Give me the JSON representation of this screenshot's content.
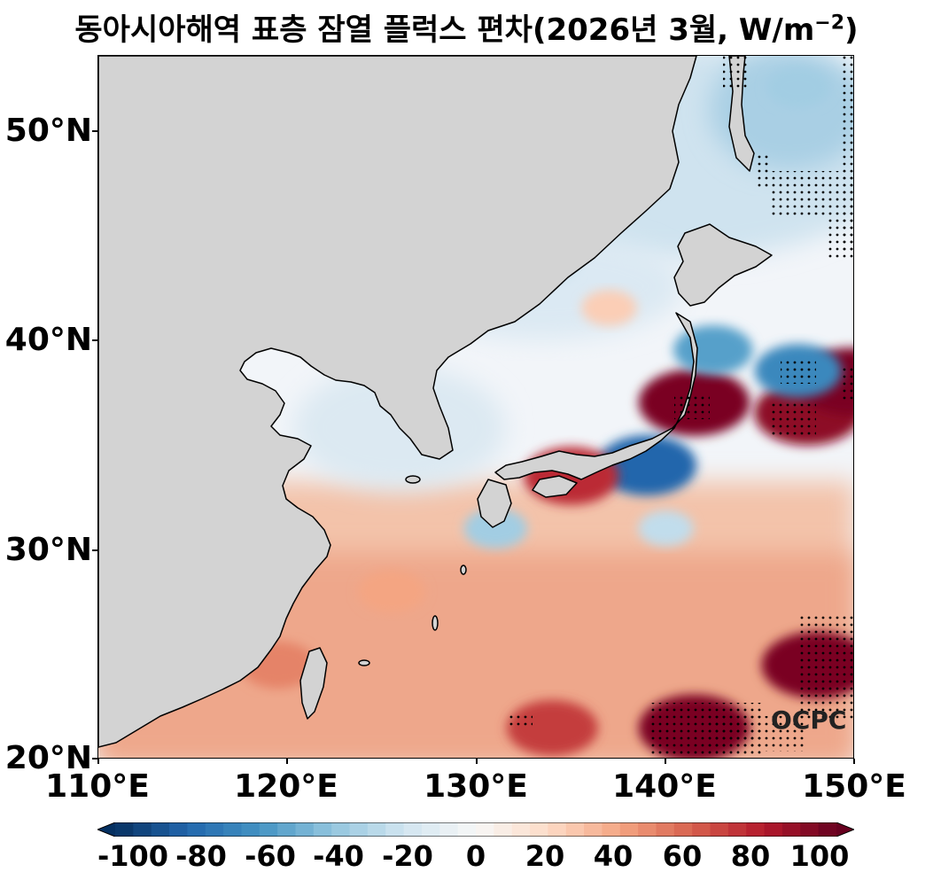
{
  "title": {
    "main": "동아시아해역 표층 잠열 플럭스 편차(2026년 3월, W/m",
    "exponent": "−2",
    "suffix": ")"
  },
  "map": {
    "lon_range": [
      110,
      150
    ],
    "lat_range": [
      20,
      53.5
    ],
    "land_color": "#d3d3d3",
    "coastline_color": "#000000",
    "lat_ticks": [
      "50°N",
      "40°N",
      "30°N",
      "20°N"
    ],
    "lon_ticks": [
      "110°E",
      "120°E",
      "130°E",
      "140°E",
      "150°E"
    ],
    "watermark": "OCPC",
    "stippling_note": "dots mark statistically significant anomalies"
  },
  "colorbar": {
    "range": [
      -100,
      100
    ],
    "extend": "both",
    "colormap": "RdBu_r",
    "ticks": [
      "-100",
      "-80",
      "-60",
      "-40",
      "-20",
      "0",
      "20",
      "40",
      "60",
      "80",
      "100"
    ],
    "low_color": "#053061",
    "high_color": "#67001f"
  },
  "chart_data": {
    "type": "heatmap",
    "title": "동아시아해역 표층 잠열 플럭스 편차(2026년 3월, W/m−2)",
    "xlabel": "",
    "ylabel": "",
    "x_range": [
      110,
      150
    ],
    "y_range": [
      20,
      53.5
    ],
    "value_range": [
      -100,
      100
    ],
    "anomaly_centers": [
      {
        "lon": 141.5,
        "lat": 37.0,
        "value": 95
      },
      {
        "lon": 147.5,
        "lat": 36.5,
        "value": 90
      },
      {
        "lon": 149.8,
        "lat": 38.0,
        "value": 95
      },
      {
        "lon": 147.0,
        "lat": 38.5,
        "value": -65
      },
      {
        "lon": 142.5,
        "lat": 39.5,
        "value": -55
      },
      {
        "lon": 139.0,
        "lat": 34.0,
        "value": -80
      },
      {
        "lon": 135.0,
        "lat": 33.5,
        "value": 75
      },
      {
        "lon": 148.0,
        "lat": 24.5,
        "value": 95
      },
      {
        "lon": 141.5,
        "lat": 21.5,
        "value": 95
      },
      {
        "lon": 134.0,
        "lat": 21.5,
        "value": 70
      },
      {
        "lon": 125.5,
        "lat": 28.0,
        "value": 40
      },
      {
        "lon": 119.5,
        "lat": 24.5,
        "value": 50
      },
      {
        "lon": 147.0,
        "lat": 52.0,
        "value": -35
      },
      {
        "lon": 134.0,
        "lat": 43.5,
        "value": -20
      },
      {
        "lon": 137.0,
        "lat": 41.5,
        "value": 25
      },
      {
        "lon": 131.0,
        "lat": 31.0,
        "value": -35
      },
      {
        "lon": 140.0,
        "lat": 31.0,
        "value": -25
      }
    ]
  }
}
